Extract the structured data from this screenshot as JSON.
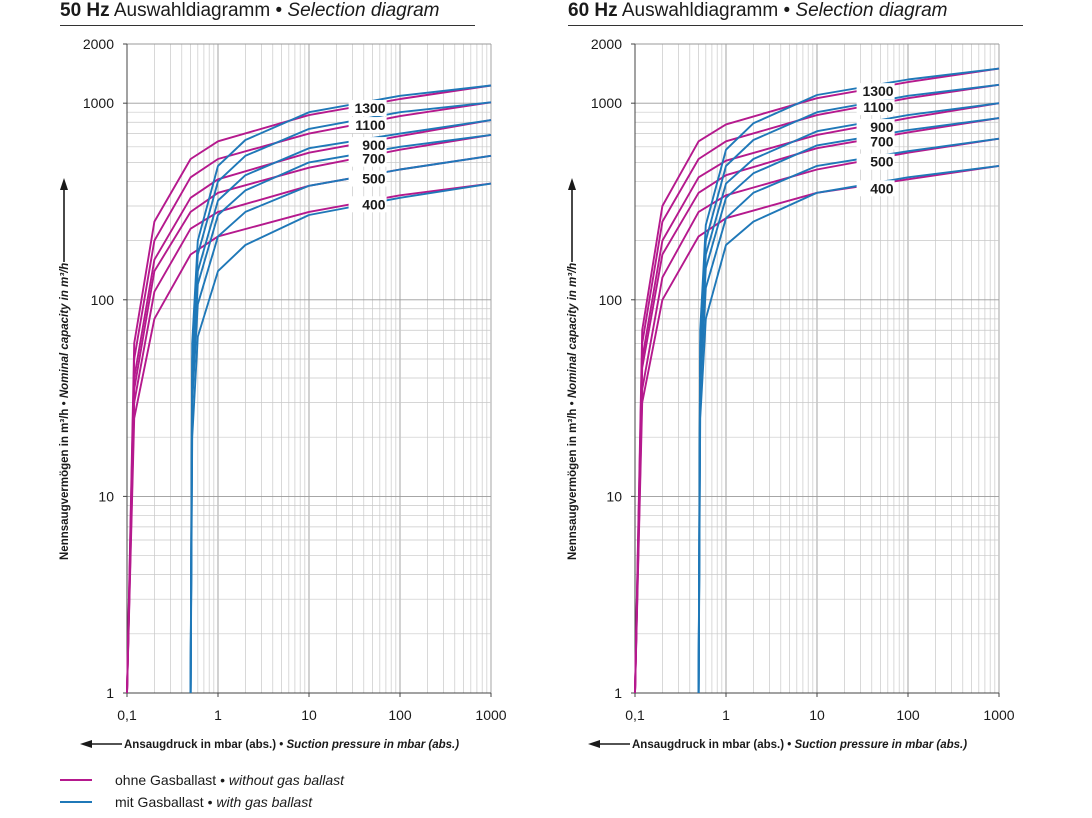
{
  "charts": [
    {
      "title": {
        "hz": "50 Hz",
        "de": "Auswahldiagramm",
        "sep": " • ",
        "en": "Selection diagram"
      },
      "ylabel": {
        "de": "Nennsaugvermögen in m³/h",
        "sep": " • ",
        "en": "Nominal capacity in m³/h"
      },
      "xlabel": {
        "de": "Ansaugdruck in mbar (abs.)",
        "sep": " • ",
        "en": "Suction pressure in mbar (abs.)"
      }
    },
    {
      "title": {
        "hz": "60 Hz",
        "de": "Auswahldiagramm",
        "sep": " • ",
        "en": "Selection diagram"
      },
      "ylabel": {
        "de": "Nennsaugvermögen in m³/h",
        "sep": " • ",
        "en": "Nominal capacity in m³/h"
      },
      "xlabel": {
        "de": "Ansaugdruck in mbar (abs.)",
        "sep": " • ",
        "en": "Suction pressure in mbar (abs.)"
      }
    }
  ],
  "legend": [
    {
      "de": "ohne Gasballast",
      "sep": " • ",
      "en": "without gas ballast",
      "color": "#b5198d"
    },
    {
      "de": "mit Gasballast",
      "sep": " • ",
      "en": "with gas ballast",
      "color": "#1f78b8"
    }
  ],
  "chart_data": [
    {
      "type": "line",
      "title": "50 Hz Auswahldiagramm • Selection diagram",
      "xlabel": "Ansaugdruck in mbar (abs.) • Suction pressure in mbar (abs.)",
      "ylabel": "Nennsaugvermögen in m³/h • Nominal capacity in m³/h",
      "x_scale": "log",
      "y_scale": "log",
      "xlim": [
        0.1,
        1000
      ],
      "ylim": [
        1,
        2000
      ],
      "x_ticks": [
        "0,1",
        "1",
        "10",
        "100",
        "1000"
      ],
      "y_ticks": [
        "1",
        "10",
        "100",
        "1000",
        "2000"
      ],
      "grid": true,
      "series_labels": [
        "1300",
        "1100",
        "900",
        "700",
        "500",
        "400"
      ],
      "series": [
        {
          "name": "1300",
          "gas_ballast": false,
          "color": "#b5198d",
          "x": [
            0.1,
            0.12,
            0.2,
            0.5,
            1,
            10,
            100,
            1000
          ],
          "y": [
            1,
            60,
            250,
            520,
            640,
            870,
            1050,
            1230
          ]
        },
        {
          "name": "1100",
          "gas_ballast": false,
          "color": "#b5198d",
          "x": [
            0.1,
            0.12,
            0.2,
            0.5,
            1,
            10,
            100,
            1000
          ],
          "y": [
            1,
            50,
            200,
            420,
            520,
            700,
            860,
            1010
          ]
        },
        {
          "name": "900",
          "gas_ballast": false,
          "color": "#b5198d",
          "x": [
            0.1,
            0.12,
            0.2,
            0.5,
            1,
            10,
            100,
            1000
          ],
          "y": [
            1,
            40,
            160,
            330,
            410,
            560,
            680,
            820
          ]
        },
        {
          "name": "700",
          "gas_ballast": false,
          "color": "#b5198d",
          "x": [
            0.1,
            0.12,
            0.2,
            0.5,
            1,
            10,
            100,
            1000
          ],
          "y": [
            1,
            35,
            140,
            280,
            350,
            470,
            580,
            690
          ]
        },
        {
          "name": "500",
          "gas_ballast": false,
          "color": "#b5198d",
          "x": [
            0.1,
            0.12,
            0.2,
            0.5,
            1,
            10,
            100,
            1000
          ],
          "y": [
            1,
            30,
            110,
            230,
            280,
            380,
            460,
            540
          ]
        },
        {
          "name": "400",
          "gas_ballast": false,
          "color": "#b5198d",
          "x": [
            0.1,
            0.12,
            0.2,
            0.5,
            1,
            10,
            100,
            1000
          ],
          "y": [
            1,
            25,
            80,
            170,
            210,
            280,
            340,
            390
          ]
        },
        {
          "name": "1300",
          "gas_ballast": true,
          "color": "#1f78b8",
          "x": [
            0.5,
            0.52,
            0.6,
            1,
            2,
            10,
            100,
            1000
          ],
          "y": [
            1,
            60,
            200,
            480,
            650,
            900,
            1090,
            1230
          ]
        },
        {
          "name": "1100",
          "gas_ballast": true,
          "color": "#1f78b8",
          "x": [
            0.5,
            0.52,
            0.6,
            1,
            2,
            10,
            100,
            1000
          ],
          "y": [
            1,
            50,
            170,
            400,
            540,
            740,
            900,
            1010
          ]
        },
        {
          "name": "900",
          "gas_ballast": true,
          "color": "#1f78b8",
          "x": [
            0.5,
            0.52,
            0.6,
            1,
            2,
            10,
            100,
            1000
          ],
          "y": [
            1,
            40,
            140,
            320,
            430,
            590,
            700,
            820
          ]
        },
        {
          "name": "700",
          "gas_ballast": true,
          "color": "#1f78b8",
          "x": [
            0.5,
            0.52,
            0.6,
            1,
            2,
            10,
            100,
            1000
          ],
          "y": [
            1,
            35,
            120,
            270,
            360,
            500,
            600,
            690
          ]
        },
        {
          "name": "500",
          "gas_ballast": true,
          "color": "#1f78b8",
          "x": [
            0.5,
            0.52,
            0.6,
            1,
            2,
            10,
            100,
            1000
          ],
          "y": [
            1,
            30,
            95,
            210,
            280,
            380,
            460,
            540
          ]
        },
        {
          "name": "400",
          "gas_ballast": true,
          "color": "#1f78b8",
          "x": [
            0.5,
            0.52,
            0.6,
            1,
            2,
            10,
            100,
            1000
          ],
          "y": [
            1,
            20,
            65,
            140,
            190,
            270,
            330,
            390
          ]
        }
      ]
    },
    {
      "type": "line",
      "title": "60 Hz Auswahldiagramm • Selection diagram",
      "xlabel": "Ansaugdruck in mbar (abs.) • Suction pressure in mbar (abs.)",
      "ylabel": "Nennsaugvermögen in m³/h • Nominal capacity in m³/h",
      "x_scale": "log",
      "y_scale": "log",
      "xlim": [
        0.1,
        1000
      ],
      "ylim": [
        1,
        2000
      ],
      "x_ticks": [
        "0,1",
        "1",
        "10",
        "100",
        "1000"
      ],
      "y_ticks": [
        "1",
        "10",
        "100",
        "1000",
        "2000"
      ],
      "grid": true,
      "series_labels": [
        "1300",
        "1100",
        "900",
        "700",
        "500",
        "400"
      ],
      "series": [
        {
          "name": "1300",
          "gas_ballast": false,
          "color": "#b5198d",
          "x": [
            0.1,
            0.12,
            0.2,
            0.5,
            1,
            10,
            100,
            1000
          ],
          "y": [
            1,
            70,
            300,
            640,
            780,
            1060,
            1280,
            1500
          ]
        },
        {
          "name": "1100",
          "gas_ballast": false,
          "color": "#b5198d",
          "x": [
            0.1,
            0.12,
            0.2,
            0.5,
            1,
            10,
            100,
            1000
          ],
          "y": [
            1,
            60,
            250,
            520,
            640,
            870,
            1060,
            1240
          ]
        },
        {
          "name": "900",
          "gas_ballast": false,
          "color": "#b5198d",
          "x": [
            0.1,
            0.12,
            0.2,
            0.5,
            1,
            10,
            100,
            1000
          ],
          "y": [
            1,
            50,
            200,
            420,
            510,
            690,
            840,
            1000
          ]
        },
        {
          "name": "700",
          "gas_ballast": false,
          "color": "#b5198d",
          "x": [
            0.1,
            0.12,
            0.2,
            0.5,
            1,
            10,
            100,
            1000
          ],
          "y": [
            1,
            45,
            170,
            350,
            430,
            590,
            710,
            840
          ]
        },
        {
          "name": "500",
          "gas_ballast": false,
          "color": "#b5198d",
          "x": [
            0.1,
            0.12,
            0.2,
            0.5,
            1,
            10,
            100,
            1000
          ],
          "y": [
            1,
            35,
            130,
            280,
            340,
            460,
            560,
            660
          ]
        },
        {
          "name": "400",
          "gas_ballast": false,
          "color": "#b5198d",
          "x": [
            0.1,
            0.12,
            0.2,
            0.5,
            1,
            10,
            100,
            1000
          ],
          "y": [
            1,
            30,
            100,
            210,
            260,
            350,
            410,
            480
          ]
        },
        {
          "name": "1300",
          "gas_ballast": true,
          "color": "#1f78b8",
          "x": [
            0.5,
            0.52,
            0.6,
            1,
            2,
            10,
            100,
            1000
          ],
          "y": [
            1,
            70,
            240,
            580,
            790,
            1100,
            1320,
            1500
          ]
        },
        {
          "name": "1100",
          "gas_ballast": true,
          "color": "#1f78b8",
          "x": [
            0.5,
            0.52,
            0.6,
            1,
            2,
            10,
            100,
            1000
          ],
          "y": [
            1,
            60,
            200,
            480,
            650,
            900,
            1090,
            1240
          ]
        },
        {
          "name": "900",
          "gas_ballast": true,
          "color": "#1f78b8",
          "x": [
            0.5,
            0.52,
            0.6,
            1,
            2,
            10,
            100,
            1000
          ],
          "y": [
            1,
            50,
            170,
            390,
            520,
            720,
            870,
            1000
          ]
        },
        {
          "name": "700",
          "gas_ballast": true,
          "color": "#1f78b8",
          "x": [
            0.5,
            0.52,
            0.6,
            1,
            2,
            10,
            100,
            1000
          ],
          "y": [
            1,
            45,
            145,
            330,
            440,
            610,
            730,
            840
          ]
        },
        {
          "name": "500",
          "gas_ballast": true,
          "color": "#1f78b8",
          "x": [
            0.5,
            0.52,
            0.6,
            1,
            2,
            10,
            100,
            1000
          ],
          "y": [
            1,
            35,
            115,
            260,
            350,
            480,
            570,
            660
          ]
        },
        {
          "name": "400",
          "gas_ballast": true,
          "color": "#1f78b8",
          "x": [
            0.5,
            0.52,
            0.6,
            1,
            2,
            10,
            100,
            1000
          ],
          "y": [
            1,
            25,
            80,
            190,
            250,
            350,
            420,
            480
          ]
        }
      ]
    }
  ]
}
